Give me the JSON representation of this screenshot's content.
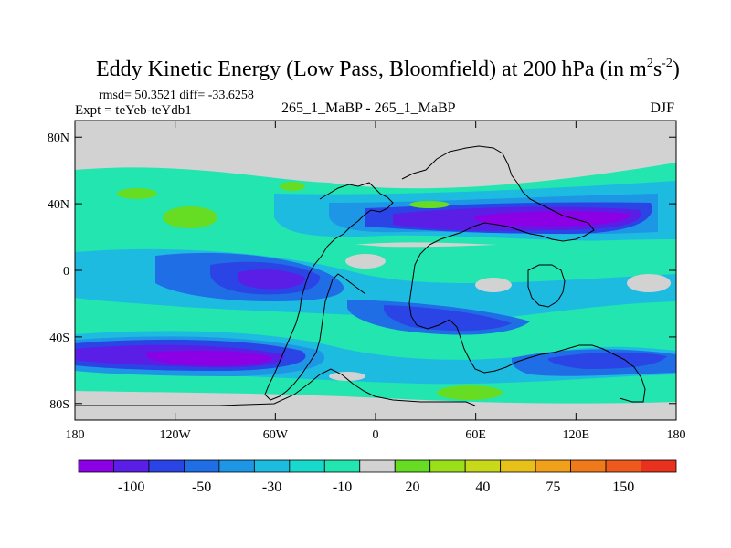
{
  "chart_data": {
    "type": "heatmap",
    "title": "Eddy Kinetic Energy (Low Pass, Bloomfield) at 200 hPa (in m",
    "title_unit_sup1": "2",
    "title_unit_s": "s",
    "title_unit_sup2": "-2",
    "title_close": ")",
    "stats": "rmsd= 50.3521 diff= -33.6258",
    "experiment": "Expt = teYeb-teYdb1",
    "subtitle": "265_1_MaBP - 265_1_MaBP",
    "season": "DJF",
    "x_ticks": [
      {
        "value": -180,
        "label": "180"
      },
      {
        "value": -120,
        "label": "120W"
      },
      {
        "value": -60,
        "label": "60W"
      },
      {
        "value": 0,
        "label": "0"
      },
      {
        "value": 60,
        "label": "60E"
      },
      {
        "value": 120,
        "label": "120E"
      },
      {
        "value": 180,
        "label": "180"
      }
    ],
    "y_ticks": [
      {
        "value": 80,
        "label": "80N"
      },
      {
        "value": 40,
        "label": "40N"
      },
      {
        "value": 0,
        "label": "0"
      },
      {
        "value": -40,
        "label": "40S"
      },
      {
        "value": -80,
        "label": "80S"
      }
    ],
    "xlim": [
      -180,
      180
    ],
    "ylim": [
      -90,
      90
    ],
    "colorbar": {
      "labels": [
        "-100",
        "-50",
        "-30",
        "-10",
        "20",
        "40",
        "75",
        "150"
      ],
      "colors": [
        "#8c00e6",
        "#5a1ee6",
        "#2b44e6",
        "#1f6ee6",
        "#1e96e6",
        "#1ebbe0",
        "#19d8cc",
        "#22e5b0",
        "#d2d2d2",
        "#66dd22",
        "#99e01a",
        "#c8d81a",
        "#e8c01a",
        "#f0a01a",
        "#f07a1a",
        "#ee5a1e",
        "#e8321e"
      ]
    },
    "anomaly_regions": [
      {
        "band": "30N-40N",
        "lon": [
          40,
          160
        ],
        "value": -120
      },
      {
        "band": "0-10S",
        "lon": [
          -140,
          -40
        ],
        "value": -90
      },
      {
        "band": "45S-60S",
        "lon": [
          -180,
          -40
        ],
        "value": -110
      },
      {
        "band": "20S-30S",
        "lon": [
          20,
          120
        ],
        "value": -60
      },
      {
        "band": "45S-55S",
        "lon": [
          100,
          160
        ],
        "value": -55
      },
      {
        "band": "35N-45N",
        "lon": [
          -130,
          -110
        ],
        "value": 20
      },
      {
        "band": "70S-75S",
        "lon": [
          40,
          80
        ],
        "value": 20
      }
    ]
  }
}
